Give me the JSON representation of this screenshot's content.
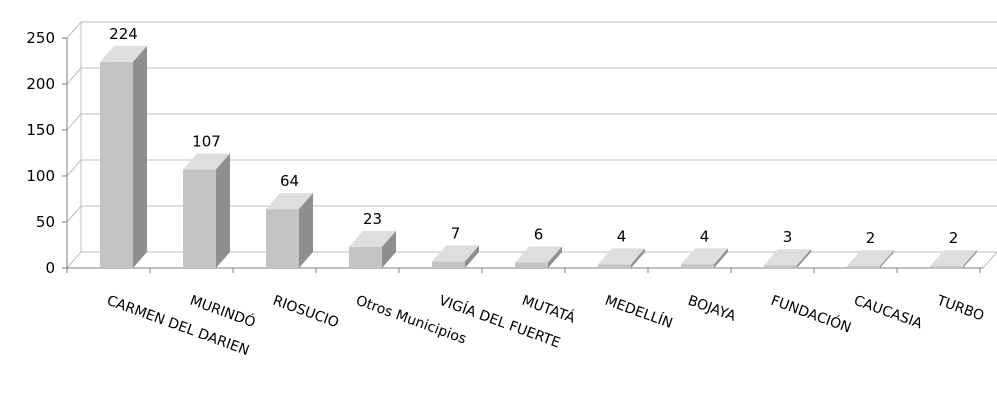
{
  "chart_data": {
    "type": "bar",
    "categories": [
      "CARMEN DEL DARIEN",
      "MURINDÓ",
      "RIOSUCIO",
      "Otros Municipios",
      "VIGÍA DEL FUERTE",
      "MUTATÁ",
      "MEDELLÍN",
      "BOJAYA",
      "FUNDACIÓN",
      "CAUCASIA",
      "TURBO"
    ],
    "values": [
      224,
      107,
      64,
      23,
      7,
      6,
      4,
      4,
      3,
      2,
      2
    ],
    "value_labels": [
      "224",
      "107",
      "64",
      "23",
      "7",
      "6",
      "4",
      "4",
      "3",
      "2",
      "2"
    ],
    "y_ticks": [
      "0",
      "50",
      "100",
      "150",
      "200",
      "250"
    ],
    "ylim": [
      0,
      250
    ],
    "grid": true,
    "style": "3d-column",
    "colors": {
      "front": "#c4c4c4",
      "top": "#dedede",
      "side": "#8f8f8f",
      "grid": "#bfbfbf"
    }
  }
}
